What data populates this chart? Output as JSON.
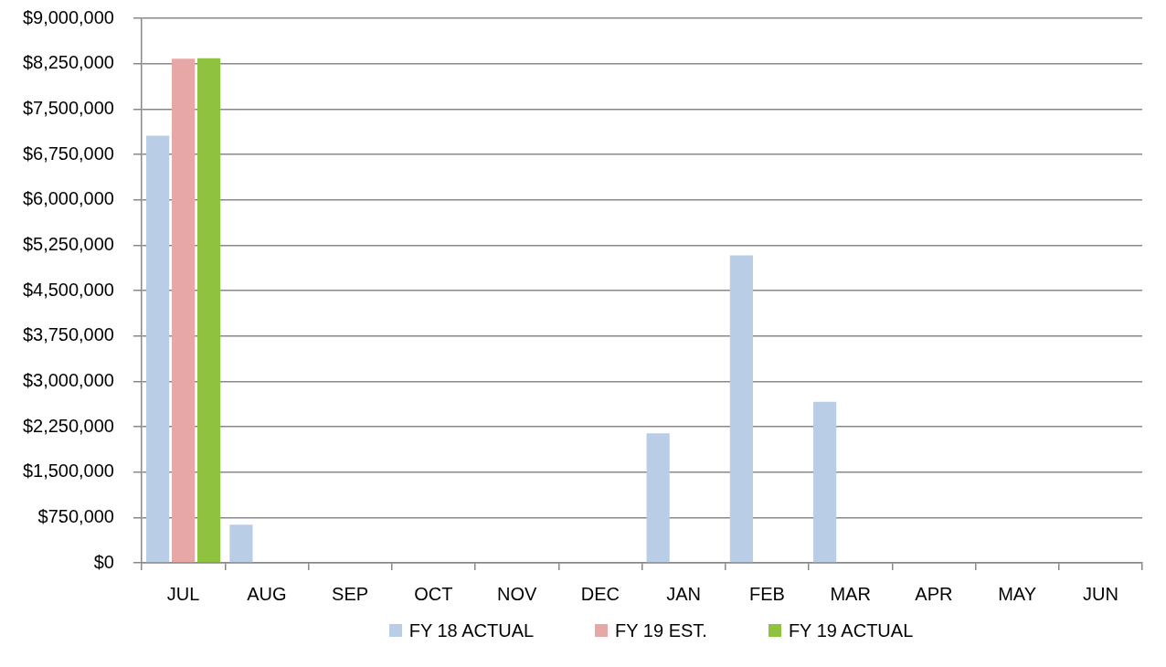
{
  "chart_data": {
    "type": "bar",
    "categories": [
      "JUL",
      "AUG",
      "SEP",
      "OCT",
      "NOV",
      "DEC",
      "JAN",
      "FEB",
      "MAR",
      "APR",
      "MAY",
      "JUN"
    ],
    "series": [
      {
        "name": "FY 18 ACTUAL",
        "color": "#b9cde6",
        "values": [
          7060000,
          630000,
          null,
          null,
          null,
          null,
          2140000,
          5080000,
          2660000,
          null,
          null,
          null
        ]
      },
      {
        "name": "FY 19 EST.",
        "color": "#e8a7a7",
        "values": [
          8330000,
          null,
          null,
          null,
          null,
          null,
          null,
          null,
          null,
          null,
          null,
          null
        ]
      },
      {
        "name": "FY 19 ACTUAL",
        "color": "#8fc23f",
        "values": [
          8340000,
          null,
          null,
          null,
          null,
          null,
          null,
          null,
          null,
          null,
          null,
          null
        ]
      }
    ],
    "ylim": [
      0,
      9000000
    ],
    "yticks": [
      {
        "value": 0,
        "label": "$0"
      },
      {
        "value": 750000,
        "label": "$750,000"
      },
      {
        "value": 1500000,
        "label": "$1,500,000"
      },
      {
        "value": 2250000,
        "label": "$2,250,000"
      },
      {
        "value": 3000000,
        "label": "$3,000,000"
      },
      {
        "value": 3750000,
        "label": "$3,750,000"
      },
      {
        "value": 4500000,
        "label": "$4,500,000"
      },
      {
        "value": 5250000,
        "label": "$5,250,000"
      },
      {
        "value": 6000000,
        "label": "$6,000,000"
      },
      {
        "value": 6750000,
        "label": "$6,750,000"
      },
      {
        "value": 7500000,
        "label": "$7,500,000"
      },
      {
        "value": 8250000,
        "label": "$8,250,000"
      },
      {
        "value": 9000000,
        "label": "$9,000,000"
      }
    ],
    "grid": "y",
    "legend": "bottom"
  }
}
